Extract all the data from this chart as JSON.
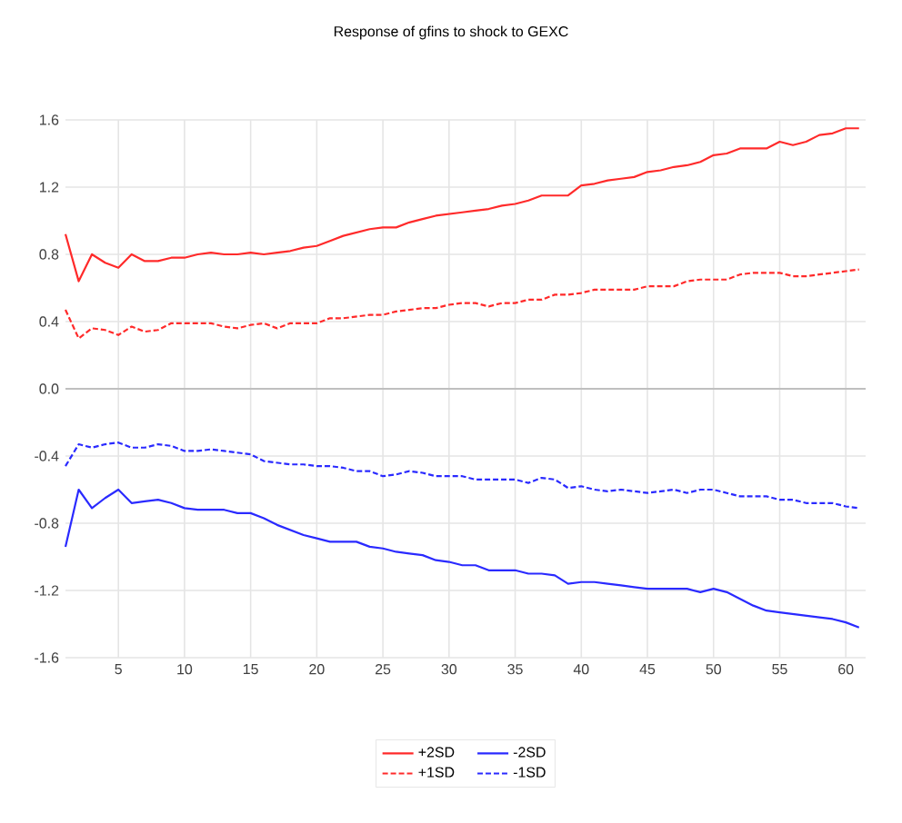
{
  "chart_data": {
    "type": "line",
    "title": "Response of gfins to shock to GEXC",
    "x": [
      1,
      2,
      3,
      4,
      5,
      6,
      7,
      8,
      9,
      10,
      11,
      12,
      13,
      14,
      15,
      16,
      17,
      18,
      19,
      20,
      21,
      22,
      23,
      24,
      25,
      26,
      27,
      28,
      29,
      30,
      31,
      32,
      33,
      34,
      35,
      36,
      37,
      38,
      39,
      40,
      41,
      42,
      43,
      44,
      45,
      46,
      47,
      48,
      49,
      50,
      51,
      52,
      53,
      54,
      55,
      56,
      57,
      58,
      59,
      60,
      61
    ],
    "series": [
      {
        "name": "+2SD",
        "color": "#ff2a2a",
        "line_style": "solid",
        "values": [
          0.92,
          0.64,
          0.8,
          0.75,
          0.72,
          0.8,
          0.76,
          0.76,
          0.78,
          0.78,
          0.8,
          0.81,
          0.8,
          0.8,
          0.81,
          0.8,
          0.81,
          0.82,
          0.84,
          0.85,
          0.88,
          0.91,
          0.93,
          0.95,
          0.96,
          0.96,
          0.99,
          1.01,
          1.03,
          1.04,
          1.05,
          1.06,
          1.07,
          1.09,
          1.1,
          1.12,
          1.15,
          1.15,
          1.15,
          1.21,
          1.22,
          1.24,
          1.25,
          1.26,
          1.29,
          1.3,
          1.32,
          1.33,
          1.35,
          1.39,
          1.4,
          1.43,
          1.43,
          1.43,
          1.47,
          1.45,
          1.47,
          1.51,
          1.52,
          1.55,
          1.55
        ]
      },
      {
        "name": "-2SD",
        "color": "#2a2aff",
        "line_style": "solid",
        "values": [
          -0.94,
          -0.6,
          -0.71,
          -0.65,
          -0.6,
          -0.68,
          -0.67,
          -0.66,
          -0.68,
          -0.71,
          -0.72,
          -0.72,
          -0.72,
          -0.74,
          -0.74,
          -0.77,
          -0.81,
          -0.84,
          -0.87,
          -0.89,
          -0.91,
          -0.91,
          -0.91,
          -0.94,
          -0.95,
          -0.97,
          -0.98,
          -0.99,
          -1.02,
          -1.03,
          -1.05,
          -1.05,
          -1.08,
          -1.08,
          -1.08,
          -1.1,
          -1.1,
          -1.11,
          -1.16,
          -1.15,
          -1.15,
          -1.16,
          -1.17,
          -1.18,
          -1.19,
          -1.19,
          -1.19,
          -1.19,
          -1.21,
          -1.19,
          -1.21,
          -1.25,
          -1.29,
          -1.32,
          -1.33,
          -1.34,
          -1.35,
          -1.36,
          -1.37,
          -1.39,
          -1.42
        ]
      },
      {
        "name": "+1SD",
        "color": "#ff2a2a",
        "line_style": "dashed",
        "values": [
          0.47,
          0.3,
          0.36,
          0.35,
          0.32,
          0.37,
          0.34,
          0.35,
          0.39,
          0.39,
          0.39,
          0.39,
          0.37,
          0.36,
          0.38,
          0.39,
          0.36,
          0.39,
          0.39,
          0.39,
          0.42,
          0.42,
          0.43,
          0.44,
          0.44,
          0.46,
          0.47,
          0.48,
          0.48,
          0.5,
          0.51,
          0.51,
          0.49,
          0.51,
          0.51,
          0.53,
          0.53,
          0.56,
          0.56,
          0.57,
          0.59,
          0.59,
          0.59,
          0.59,
          0.61,
          0.61,
          0.61,
          0.64,
          0.65,
          0.65,
          0.65,
          0.68,
          0.69,
          0.69,
          0.69,
          0.67,
          0.67,
          0.68,
          0.69,
          0.7,
          0.71
        ]
      },
      {
        "name": "-1SD",
        "color": "#2a2aff",
        "line_style": "dashed",
        "values": [
          -0.46,
          -0.33,
          -0.35,
          -0.33,
          -0.32,
          -0.35,
          -0.35,
          -0.33,
          -0.34,
          -0.37,
          -0.37,
          -0.36,
          -0.37,
          -0.38,
          -0.39,
          -0.43,
          -0.44,
          -0.45,
          -0.45,
          -0.46,
          -0.46,
          -0.47,
          -0.49,
          -0.49,
          -0.52,
          -0.51,
          -0.49,
          -0.5,
          -0.52,
          -0.52,
          -0.52,
          -0.54,
          -0.54,
          -0.54,
          -0.54,
          -0.56,
          -0.53,
          -0.54,
          -0.59,
          -0.58,
          -0.6,
          -0.61,
          -0.6,
          -0.61,
          -0.62,
          -0.61,
          -0.6,
          -0.62,
          -0.6,
          -0.6,
          -0.62,
          -0.64,
          -0.64,
          -0.64,
          -0.66,
          -0.66,
          -0.68,
          -0.68,
          -0.68,
          -0.7,
          -0.71
        ]
      }
    ],
    "xlim": [
      1,
      61.5
    ],
    "xticks": [
      5,
      10,
      15,
      20,
      25,
      30,
      35,
      40,
      45,
      50,
      55,
      60
    ],
    "ylim": [
      -1.6,
      1.6
    ],
    "yticks": [
      {
        "value": -1.6,
        "label": "-1.6"
      },
      {
        "value": -1.2,
        "label": "-1.2"
      },
      {
        "value": -0.8,
        "label": "-0.8"
      },
      {
        "value": -0.4,
        "label": "-0.4"
      },
      {
        "value": 0,
        "label": "0.0"
      },
      {
        "value": 0.4,
        "label": "0.4"
      },
      {
        "value": 0.8,
        "label": "0.8"
      },
      {
        "value": 1.2,
        "label": "1.2"
      },
      {
        "value": 1.6,
        "label": "1.6"
      }
    ],
    "grid": true,
    "legend": "bottom",
    "marker": "none"
  }
}
